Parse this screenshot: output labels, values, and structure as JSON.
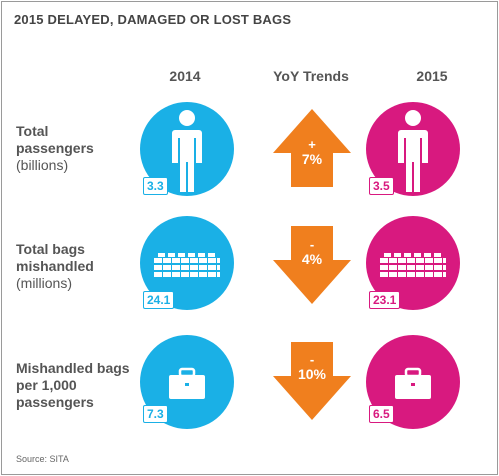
{
  "title": "2015 DELAYED, DAMAGED OR LOST BAGS",
  "columns": {
    "left": "2014",
    "middle": "YoY Trends",
    "right": "2015"
  },
  "source": "Source: SITA",
  "colors": {
    "blue": "#1ab0e6",
    "orange": "#f07f1e",
    "pink": "#d8197f"
  },
  "chart_data": {
    "type": "table",
    "title": "2015 DELAYED, DAMAGED OR LOST BAGS",
    "columns": [
      "2014",
      "YoY Trends",
      "2015"
    ],
    "rows": [
      {
        "label_bold": "Total passengers",
        "label_unit": "(billions)",
        "icon": "person-icon",
        "v2014": "3.3",
        "trend_sign": "+",
        "trend": "7%",
        "direction": "up",
        "v2015": "3.5"
      },
      {
        "label_bold": "Total bags mishandled",
        "label_unit": "(millions)",
        "icon": "luggage-pile-icon",
        "v2014": "24.1",
        "trend_sign": "-",
        "trend": "4%",
        "direction": "down",
        "v2015": "23.1"
      },
      {
        "label_bold": "Mishandled bags per 1,000 passengers",
        "label_unit": "",
        "icon": "briefcase-icon",
        "v2014": "7.3",
        "trend_sign": "-",
        "trend": "10%",
        "direction": "down",
        "v2015": "6.5"
      }
    ]
  }
}
